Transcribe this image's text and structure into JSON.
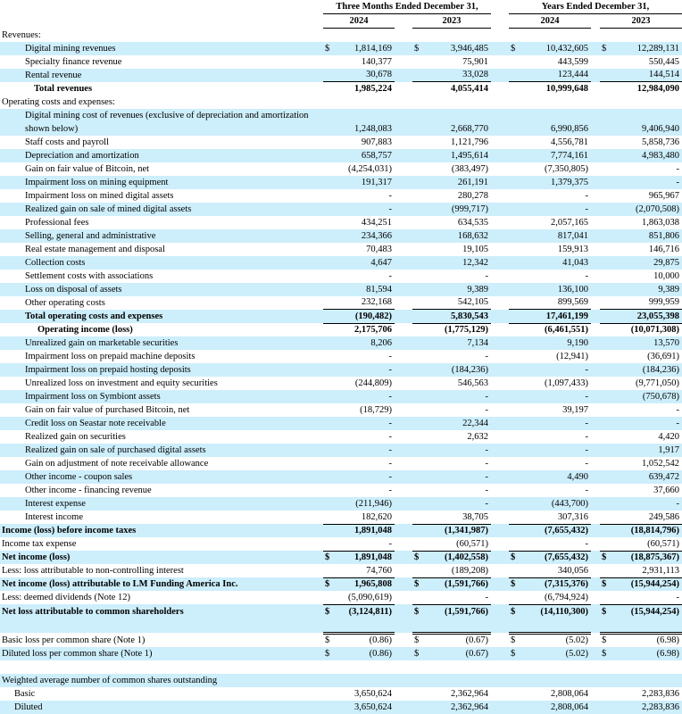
{
  "header": {
    "group1": "Three Months Ended December 31,",
    "group2": "Years Ended December 31,",
    "years": [
      "2024",
      "2023",
      "2024",
      "2023"
    ]
  },
  "currency_symbol": "$",
  "rows": [
    {
      "label": "Revenues:",
      "values": []
    },
    {
      "label": "Digital mining revenues",
      "values": [
        "1,814,169",
        "3,946,485",
        "10,432,605",
        "12,289,131"
      ],
      "currency": true
    },
    {
      "label": "Specialty finance revenue",
      "values": [
        "140,377",
        "75,901",
        "443,599",
        "550,445"
      ]
    },
    {
      "label": "Rental revenue",
      "values": [
        "30,678",
        "33,028",
        "123,444",
        "144,514"
      ]
    },
    {
      "label": "Total revenues",
      "values": [
        "1,985,224",
        "4,055,414",
        "10,999,648",
        "12,984,090"
      ]
    },
    {
      "label": "Operating costs and expenses:",
      "values": []
    },
    {
      "label": "Digital mining cost of revenues (exclusive of depreciation and amortization shown below)",
      "values": [
        "1,248,083",
        "2,668,770",
        "6,990,856",
        "9,406,940"
      ]
    },
    {
      "label": "Staff costs and payroll",
      "values": [
        "907,883",
        "1,121,796",
        "4,556,781",
        "5,858,736"
      ]
    },
    {
      "label": "Depreciation and amortization",
      "values": [
        "658,757",
        "1,495,614",
        "7,774,161",
        "4,983,480"
      ]
    },
    {
      "label": "Gain on fair value of Bitcoin, net",
      "values": [
        "(4,254,031)",
        "(383,497)",
        "(7,350,805)",
        "-"
      ]
    },
    {
      "label": "Impairment loss on mining equipment",
      "values": [
        "191,317",
        "261,191",
        "1,379,375",
        "-"
      ]
    },
    {
      "label": "Impairment loss on mined digital assets",
      "values": [
        "-",
        "280,278",
        "-",
        "965,967"
      ]
    },
    {
      "label": "Realized gain on sale of mined digital assets",
      "values": [
        "-",
        "(999,717)",
        "-",
        "(2,070,508)"
      ]
    },
    {
      "label": "Professional fees",
      "values": [
        "434,251",
        "634,535",
        "2,057,165",
        "1,863,038"
      ]
    },
    {
      "label": "Selling, general and administrative",
      "values": [
        "234,366",
        "168,632",
        "817,041",
        "851,806"
      ]
    },
    {
      "label": "Real estate management and disposal",
      "values": [
        "70,483",
        "19,105",
        "159,913",
        "146,716"
      ]
    },
    {
      "label": "Collection costs",
      "values": [
        "4,647",
        "12,342",
        "41,043",
        "29,875"
      ]
    },
    {
      "label": "Settlement costs with associations",
      "values": [
        "-",
        "-",
        "-",
        "10,000"
      ]
    },
    {
      "label": "Loss on disposal of assets",
      "values": [
        "81,594",
        "9,389",
        "136,100",
        "9,389"
      ]
    },
    {
      "label": "Other operating costs",
      "values": [
        "232,168",
        "542,105",
        "899,569",
        "999,959"
      ]
    },
    {
      "label": "Total operating costs and expenses",
      "values": [
        "(190,482)",
        "5,830,543",
        "17,461,199",
        "23,055,398"
      ]
    },
    {
      "label": "Operating income (loss)",
      "values": [
        "2,175,706",
        "(1,775,129)",
        "(6,461,551)",
        "(10,071,308)"
      ]
    },
    {
      "label": "Unrealized gain on marketable securities",
      "values": [
        "8,206",
        "7,134",
        "9,190",
        "13,570"
      ]
    },
    {
      "label": "Impairment loss on prepaid machine deposits",
      "values": [
        "-",
        "-",
        "(12,941)",
        "(36,691)"
      ]
    },
    {
      "label": "Impairment loss on prepaid hosting deposits",
      "values": [
        "-",
        "(184,236)",
        "-",
        "(184,236)"
      ]
    },
    {
      "label": "Unrealized loss on investment and equity securities",
      "values": [
        "(244,809)",
        "546,563",
        "(1,097,433)",
        "(9,771,050)"
      ]
    },
    {
      "label": "Impairment loss on Symbiont assets",
      "values": [
        "-",
        "-",
        "-",
        "(750,678)"
      ]
    },
    {
      "label": "Gain on fair value of purchased Bitcoin, net",
      "values": [
        "(18,729)",
        "-",
        "39,197",
        "-"
      ]
    },
    {
      "label": "Credit loss on Seastar note receivable",
      "values": [
        "-",
        "22,344",
        "-",
        "-"
      ]
    },
    {
      "label": "Realized gain on securities",
      "values": [
        "-",
        "2,632",
        "-",
        "4,420"
      ]
    },
    {
      "label": "Realized gain on sale of purchased digital assets",
      "values": [
        "-",
        "-",
        "-",
        "1,917"
      ]
    },
    {
      "label": "Gain on adjustment of note receivable allowance",
      "values": [
        "-",
        "-",
        "-",
        "1,052,542"
      ]
    },
    {
      "label": "Other income - coupon sales",
      "values": [
        "-",
        "-",
        "4,490",
        "639,472"
      ]
    },
    {
      "label": "Other income - financing revenue",
      "values": [
        "-",
        "-",
        "-",
        "37,660"
      ]
    },
    {
      "label": "Interest expense",
      "values": [
        "(211,946)",
        "-",
        "(443,700)",
        "-"
      ]
    },
    {
      "label": "Interest income",
      "values": [
        "182,620",
        "38,705",
        "307,316",
        "249,586"
      ]
    },
    {
      "label": "Income (loss) before income taxes",
      "values": [
        "1,891,048",
        "(1,341,987)",
        "(7,655,432)",
        "(18,814,796)"
      ]
    },
    {
      "label": "Income tax expense",
      "values": [
        "-",
        "(60,571)",
        "-",
        "(60,571)"
      ]
    },
    {
      "label": "Net income (loss)",
      "values": [
        "1,891,048",
        "(1,402,558)",
        "(7,655,432)",
        "(18,875,367)"
      ],
      "currency": true
    },
    {
      "label": "Less: loss attributable to non-controlling interest",
      "values": [
        "74,760",
        "(189,208)",
        "340,056",
        "2,931,113"
      ]
    },
    {
      "label": "Net income (loss) attributable to LM Funding America Inc.",
      "values": [
        "1,965,808",
        "(1,591,766)",
        "(7,315,376)",
        "(15,944,254)"
      ],
      "currency": true
    },
    {
      "label": "Less: deemed dividends (Note 12)",
      "values": [
        "(5,090,619)",
        "-",
        "(6,794,924)",
        "-"
      ]
    },
    {
      "label": "Net loss attributable to common shareholders",
      "values": [
        "(3,124,811)",
        "(1,591,766)",
        "(14,110,300)",
        "(15,944,254)"
      ],
      "currency": true
    },
    {
      "label": "Basic loss per common share (Note 1)",
      "values": [
        "(0.86)",
        "(0.67)",
        "(5.02)",
        "(6.98)"
      ],
      "currency": true
    },
    {
      "label": "Diluted loss per common share (Note 1)",
      "values": [
        "(0.86)",
        "(0.67)",
        "(5.02)",
        "(6.98)"
      ],
      "currency": true
    },
    {
      "label": "",
      "values": []
    },
    {
      "label": "Weighted average number of common shares outstanding",
      "values": []
    },
    {
      "label": "Basic",
      "values": [
        "3,650,624",
        "2,362,964",
        "2,808,064",
        "2,283,836"
      ]
    },
    {
      "label": "Diluted",
      "values": [
        "3,650,624",
        "2,362,964",
        "2,808,064",
        "2,283,836"
      ]
    }
  ]
}
